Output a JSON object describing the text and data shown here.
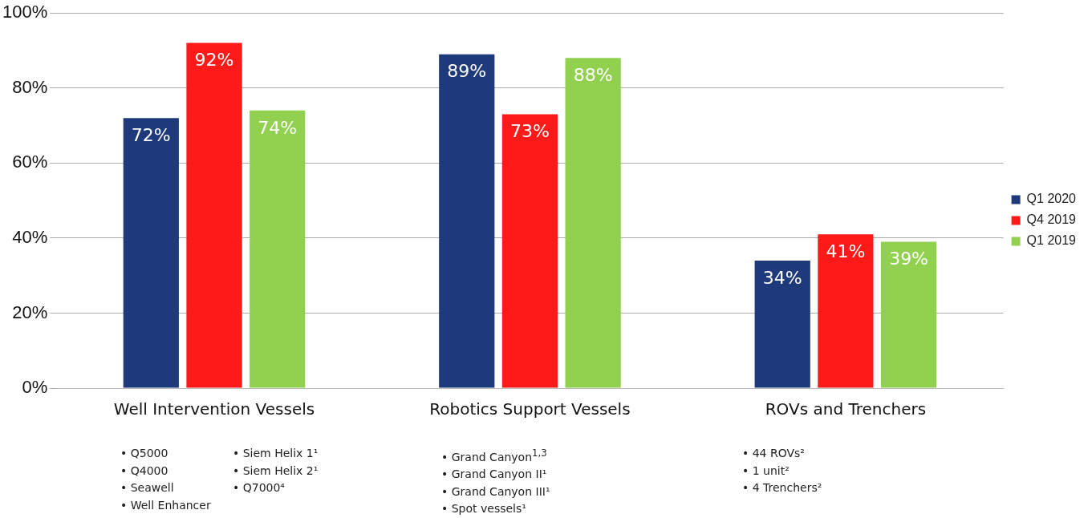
{
  "chart_data": {
    "type": "bar",
    "categories": [
      "Well Intervention Vessels",
      "Robotics Support Vessels",
      "ROVs and Trenchers"
    ],
    "series": [
      {
        "name": "Q1 2020",
        "color": "#1f3a7a",
        "values": [
          72,
          89,
          34
        ],
        "value_labels": [
          "72%",
          "89%",
          "34%"
        ]
      },
      {
        "name": "Q4 2019",
        "color": "#ff1a1a",
        "values": [
          92,
          73,
          41
        ],
        "value_labels": [
          "92%",
          "73%",
          "41%"
        ]
      },
      {
        "name": "Q1 2019",
        "color": "#92d050",
        "values": [
          74,
          88,
          39
        ],
        "value_labels": [
          "74%",
          "88%",
          "39%"
        ]
      }
    ],
    "ylim": [
      0,
      100
    ],
    "yticks": [
      {
        "value": 0,
        "label": "0%"
      },
      {
        "value": 20,
        "label": "20%"
      },
      {
        "value": 40,
        "label": "40%"
      },
      {
        "value": 60,
        "label": "60%"
      },
      {
        "value": 80,
        "label": "80%"
      },
      {
        "value": 100,
        "label": "100%"
      }
    ],
    "grid": "y",
    "legend": "right",
    "annotations": [
      "• Q5000\n• Q4000\n• Seawell\n• Well Enhancer",
      "• Siem Helix 1¹\n• Siem Helix 2¹\n• Q7000⁴",
      "• Grand Canyon$^{1,3}$\n• Grand Canyon II¹\n• Grand Canyon III¹\n• Spot vessels¹",
      "• 44 ROVs²\n• 1 unit²\n• 4 Trenchers²"
    ]
  }
}
